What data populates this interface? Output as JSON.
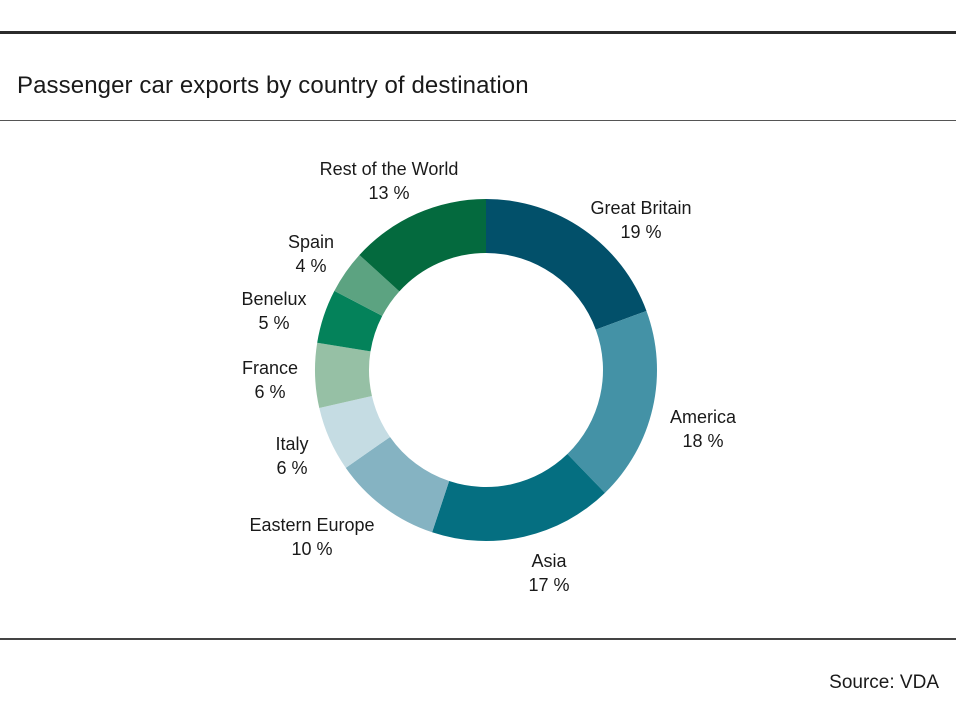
{
  "header": {
    "title": "Passenger car exports by country of destination"
  },
  "footer": {
    "source": "Source: VDA"
  },
  "chart_data": {
    "type": "pie",
    "title": "Passenger car exports by country of destination",
    "donut": true,
    "unit": "%",
    "slices": [
      {
        "label": "Great Britain",
        "value": 19,
        "value_text": "19 %",
        "color": "#02506a"
      },
      {
        "label": "America",
        "value": 18,
        "value_text": "18 %",
        "color": "#4492a6"
      },
      {
        "label": "Asia",
        "value": 17,
        "value_text": "17 %",
        "color": "#056f81"
      },
      {
        "label": "Eastern Europe",
        "value": 10,
        "value_text": "10 %",
        "color": "#85b3c2"
      },
      {
        "label": "Italy",
        "value": 6,
        "value_text": "6 %",
        "color": "#c5dce3"
      },
      {
        "label": "France",
        "value": 6,
        "value_text": "6 %",
        "color": "#96c0a5"
      },
      {
        "label": "Benelux",
        "value": 5,
        "value_text": "5 %",
        "color": "#04825a"
      },
      {
        "label": "Spain",
        "value": 4,
        "value_text": "4 %",
        "color": "#5ca381"
      },
      {
        "label": "Rest of the World",
        "value": 13,
        "value_text": "13 %",
        "color": "#046a3e"
      }
    ]
  }
}
